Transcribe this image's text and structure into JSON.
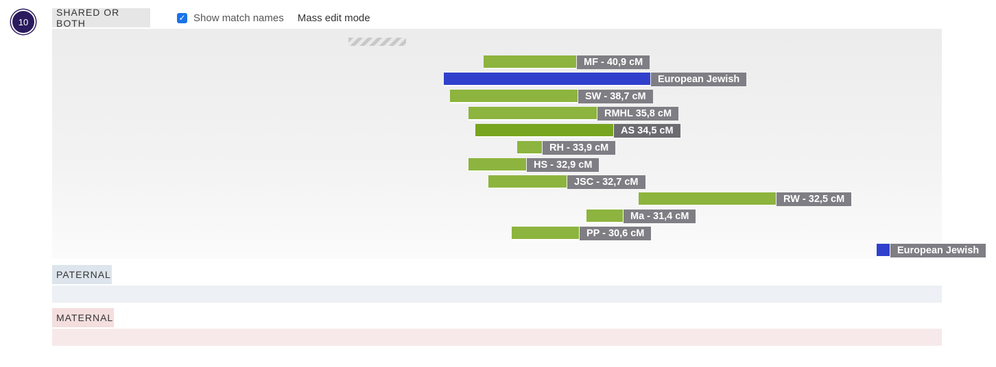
{
  "chromosome": {
    "number": "10"
  },
  "sections": {
    "shared": {
      "label": "SHARED OR BOTH"
    },
    "paternal": {
      "label": "PATERNAL"
    },
    "maternal": {
      "label": "MATERNAL"
    }
  },
  "controls": {
    "show_match_names": {
      "label": "Show match names",
      "checked": true
    },
    "mass_edit": {
      "label": "Mass edit mode"
    }
  },
  "segments": [
    {
      "label": "MF - 40,9 cM",
      "type": "match",
      "color": "#8db43e"
    },
    {
      "label": "European Jewish",
      "type": "ethnicity",
      "color": "#3040cc"
    },
    {
      "label": "SW - 38,7 cM",
      "type": "match",
      "color": "#8db43e"
    },
    {
      "label": "RMHL 35,8 cM",
      "type": "match",
      "color": "#8db43e"
    },
    {
      "label": "AS 34,5 cM",
      "type": "match",
      "color": "#78a520"
    },
    {
      "label": "RH - 33,9 cM",
      "type": "match",
      "color": "#8db43e"
    },
    {
      "label": "HS - 32,9 cM",
      "type": "match",
      "color": "#8db43e"
    },
    {
      "label": "JSC - 32,7 cM",
      "type": "match",
      "color": "#8db43e"
    },
    {
      "label": "RW - 32,5 cM",
      "type": "match",
      "color": "#8db43e"
    },
    {
      "label": "Ma - 31,4 cM",
      "type": "match",
      "color": "#8db43e"
    },
    {
      "label": "PP - 30,6 cM",
      "type": "match",
      "color": "#8db43e"
    },
    {
      "label": "European Jewish",
      "type": "ethnicity",
      "color": "#3040cc"
    }
  ]
}
